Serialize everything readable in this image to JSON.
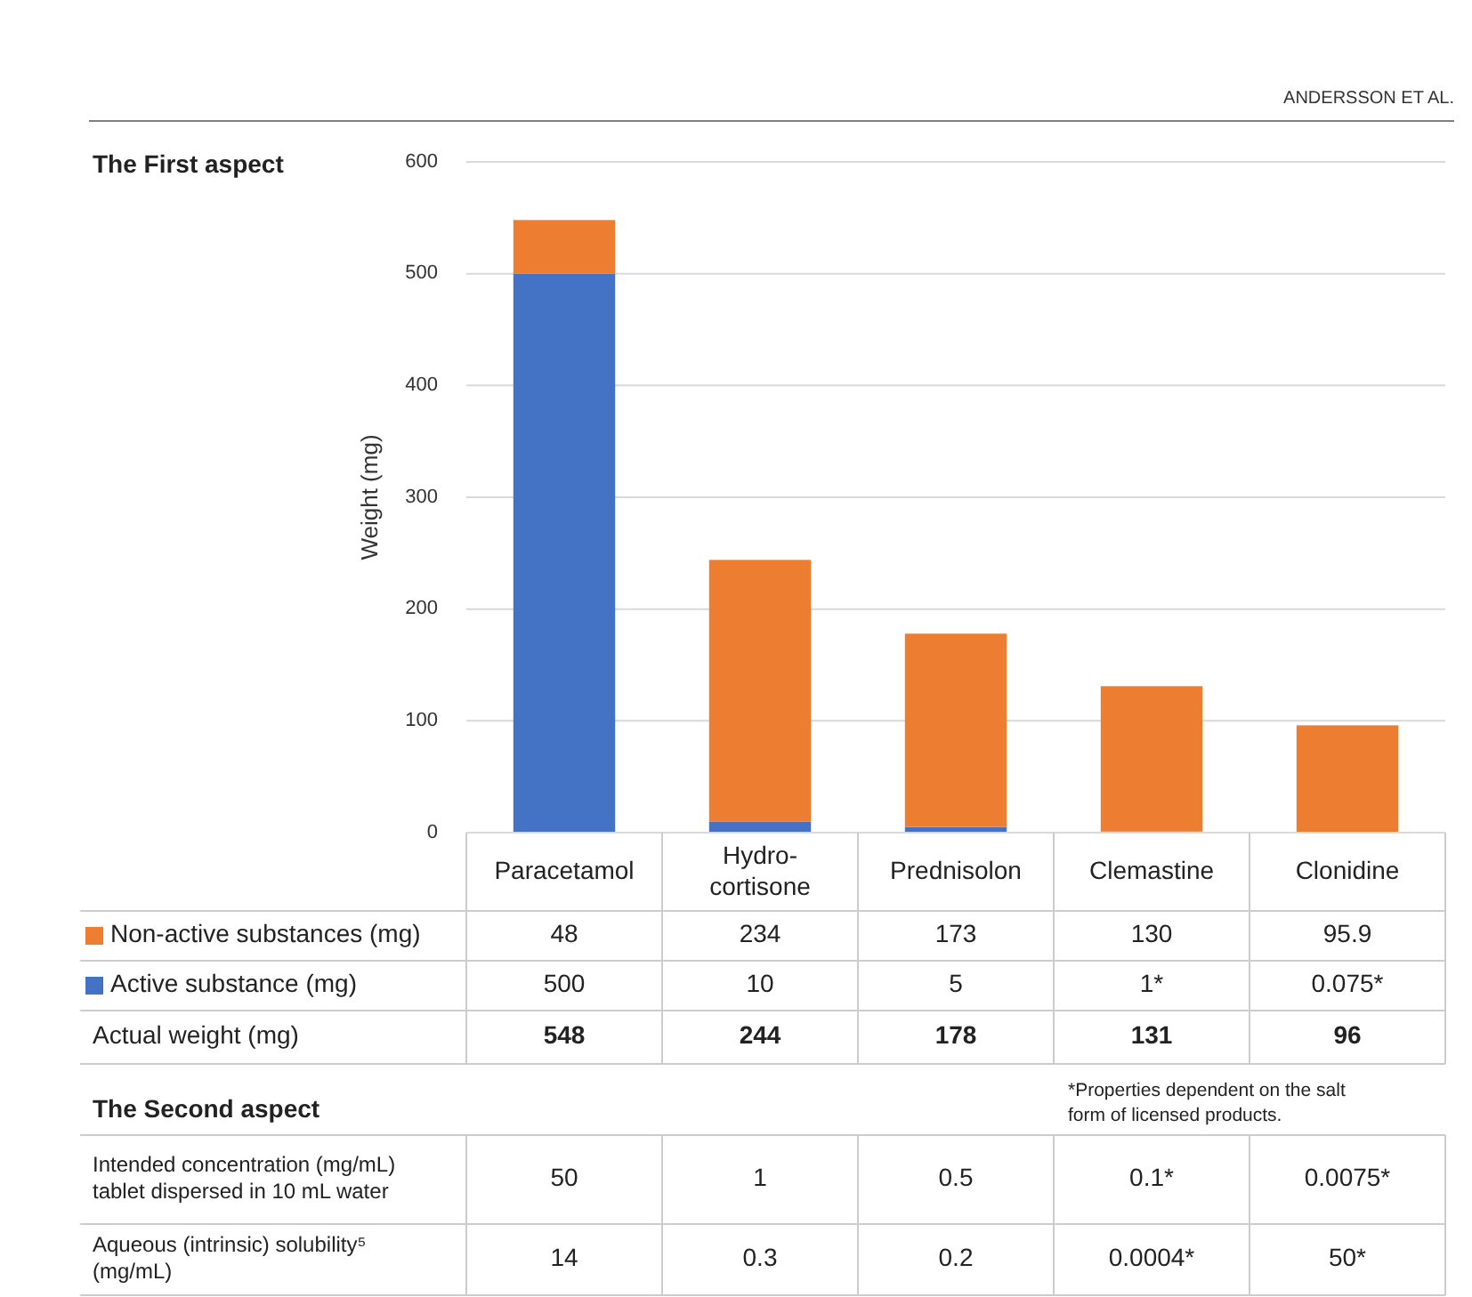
{
  "chart_data": {
    "type": "bar",
    "stacked": true,
    "title": "The First aspect",
    "ylabel": "Weight (mg)",
    "categories": [
      "Paracetamol",
      "Hydro-cortisone",
      "Prednisolon",
      "Clemastine",
      "Clonidine"
    ],
    "series": [
      {
        "name": "Active substance (mg)",
        "color": "#4472c4",
        "values": [
          500,
          10,
          5,
          1,
          0.075
        ],
        "value_labels": [
          "500",
          "10",
          "5",
          "1*",
          "0.075*"
        ]
      },
      {
        "name": "Non-active substances (mg)",
        "color": "#ed7d31",
        "values": [
          48,
          234,
          173,
          130,
          95.9
        ],
        "value_labels": [
          "48",
          "234",
          "173",
          "130",
          "95.9"
        ]
      }
    ],
    "ylim": [
      0,
      600
    ],
    "yticks": [
      0,
      100,
      200,
      300,
      400,
      500,
      600
    ],
    "grid": "y",
    "legend": "bottom",
    "annotations": [
      "ANDERSSON ET AL.",
      "Actual weight (mg)",
      "The Second aspect",
      "*Properties dependent on the salt form of licensed products.",
      "Intended concentration (mg/mL) tablet dispersed in 10 mL water",
      "50",
      "1",
      "0.5",
      "0.1*",
      "0.0075*",
      "Aqueous (intrinsic) solubility⁵ (mg/mL)",
      "14",
      "0.3",
      "0.2",
      "0.0004*",
      "50*",
      "548",
      "244",
      "178",
      "131",
      "96"
    ]
  }
}
